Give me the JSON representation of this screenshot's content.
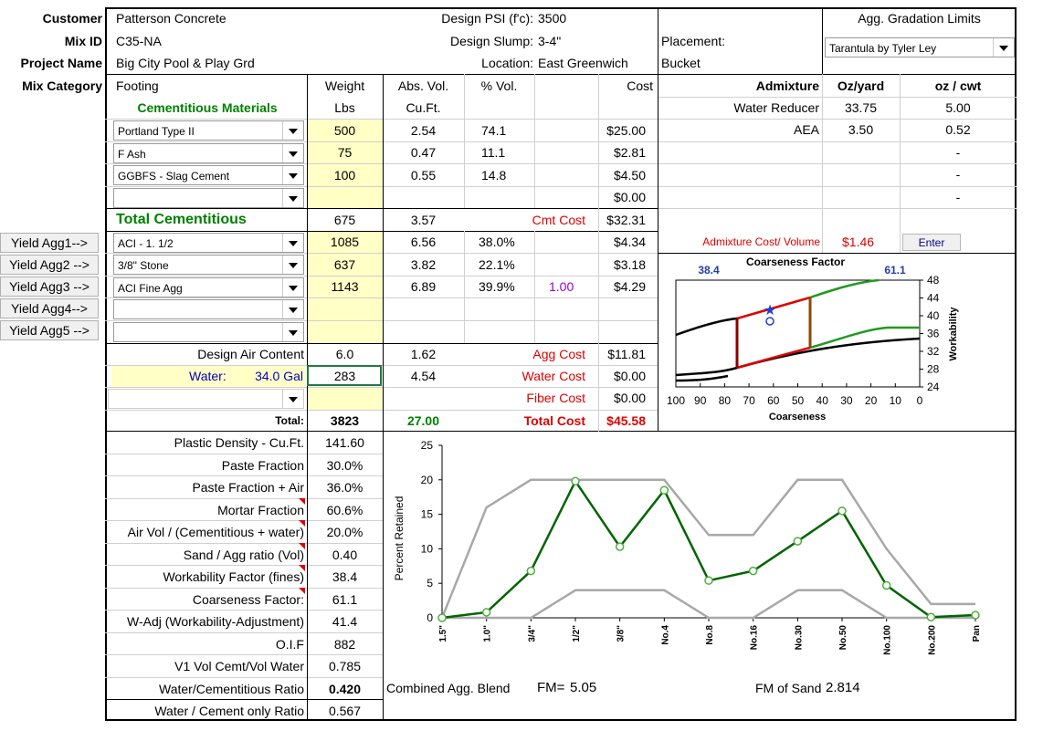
{
  "header": {
    "customer_label": "Customer",
    "customer": "Patterson Concrete",
    "mixid_label": "Mix ID",
    "mixid": "C35-NA",
    "project_label": "Project Name",
    "project": "Big City Pool & Play Grd",
    "category_label": "Mix Category",
    "category": "Footing",
    "psi_label": "Design PSI (f'c):",
    "psi": "3500",
    "slump_label": "Design Slump:",
    "slump": "3-4\"",
    "location_label": "Location:",
    "location": "East Greenwich",
    "placement_label": "Placement:",
    "placement": "Bucket",
    "agg_limits_label": "Agg. Gradation Limits",
    "agg_limits_value": "Tarantula by Tyler Ley"
  },
  "columns": {
    "weight": "Weight",
    "lbs": "Lbs",
    "absvol": "Abs. Vol.",
    "cuft": "Cu.Ft.",
    "pctvol": "% Vol.",
    "cost": "Cost"
  },
  "cementitious": {
    "heading": "Cementitious Materials",
    "rows": [
      {
        "name": "Portland Type II",
        "weight": "500",
        "vol": "2.54",
        "pct": "74.1",
        "cost": "$25.00"
      },
      {
        "name": "F Ash",
        "weight": "75",
        "vol": "0.47",
        "pct": "11.1",
        "cost": "$2.81"
      },
      {
        "name": "GGBFS - Slag Cement",
        "weight": "100",
        "vol": "0.55",
        "pct": "14.8",
        "cost": "$4.50"
      },
      {
        "name": "",
        "weight": "",
        "vol": "",
        "pct": "",
        "cost": "$0.00"
      }
    ],
    "total_label": "Total Cementitious",
    "total_weight": "675",
    "total_vol": "3.57",
    "cost_label": "Cmt Cost",
    "total_cost": "$32.31"
  },
  "aggregates": {
    "buttons": [
      "Yield Agg1-->",
      "Yield Agg2 -->",
      "Yield Agg3 -->",
      "Yield Agg4-->",
      "Yield Agg5 -->"
    ],
    "rows": [
      {
        "name": "ACI - 1. 1/2",
        "weight": "1085",
        "vol": "6.56",
        "pct": "38.0%",
        "extra": "",
        "cost": "$4.34"
      },
      {
        "name": "3/8\" Stone",
        "weight": "637",
        "vol": "3.82",
        "pct": "22.1%",
        "extra": "",
        "cost": "$3.18"
      },
      {
        "name": "ACI Fine Agg",
        "weight": "1143",
        "vol": "6.89",
        "pct": "39.9%",
        "extra": "1.00",
        "cost": "$4.29"
      },
      {
        "name": "",
        "weight": "",
        "vol": "",
        "pct": "",
        "extra": "",
        "cost": ""
      },
      {
        "name": "",
        "weight": "",
        "vol": "",
        "pct": "",
        "extra": "",
        "cost": ""
      }
    ]
  },
  "air": {
    "label": "Design Air Content",
    "value": "6.0",
    "vol": "1.62",
    "cost_label": "Agg Cost",
    "cost": "$11.81"
  },
  "water": {
    "label": "Water:",
    "gal": "34.0 Gal",
    "weight": "283",
    "vol": "4.54",
    "cost_label": "Water Cost",
    "cost": "$0.00"
  },
  "fiber": {
    "cost_label": "Fiber Cost",
    "cost": "$0.00"
  },
  "totals": {
    "label": "Total:",
    "weight": "3823",
    "vol": "27.00",
    "cost_label": "Total Cost",
    "cost": "$45.58"
  },
  "admixture": {
    "heading": "Admixture",
    "col1": "Oz/yard",
    "col2": "oz / cwt",
    "rows": [
      {
        "name": "Water Reducer",
        "oz": "33.75",
        "cwt": "5.00"
      },
      {
        "name": "AEA",
        "oz": "3.50",
        "cwt": "0.52"
      },
      {
        "name": "",
        "oz": "",
        "cwt": "-"
      },
      {
        "name": "",
        "oz": "",
        "cwt": "-"
      },
      {
        "name": "",
        "oz": "",
        "cwt": "-"
      }
    ],
    "cost_label": "Admixture Cost/ Volume",
    "cost": "$1.46",
    "enter": "Enter"
  },
  "properties": [
    {
      "label": "Plastic Density -   Cu.Ft.",
      "value": "141.60"
    },
    {
      "label": "Paste Fraction",
      "value": "30.0%"
    },
    {
      "label": "Paste Fraction + Air",
      "value": "36.0%"
    },
    {
      "label": "Mortar Fraction",
      "value": "60.6%"
    },
    {
      "label": "Air Vol / (Cementitious + water)",
      "value": "20.0%"
    },
    {
      "label": "Sand / Agg ratio (Vol)",
      "value": "0.40"
    },
    {
      "label": "Workability Factor (fines)",
      "value": "38.4"
    },
    {
      "label": "Coarseness Factor:",
      "value": "61.1"
    },
    {
      "label": "W-Adj (Workability-Adjustment)",
      "value": "41.4"
    },
    {
      "label": "O.I.F",
      "value": "882"
    },
    {
      "label": "V1   Vol Cemt/Vol Water",
      "value": "0.785"
    },
    {
      "label": "Water/Cementitious Ratio",
      "value": "0.420"
    },
    {
      "label": "Water / Cement only Ratio",
      "value": "0.567"
    }
  ],
  "footer": {
    "blend": "Combined Agg. Blend",
    "fm_label": "FM=",
    "fm": "5.05",
    "fm_sand_label": "FM of Sand",
    "fm_sand": "2.814"
  },
  "chart_data": [
    {
      "type": "line",
      "title": "Coarseness Factor",
      "xlabel": "Coarseness",
      "ylabel": "Workability",
      "xlim": [
        100,
        0
      ],
      "ylim": [
        24,
        48
      ],
      "xticks": [
        100,
        90,
        80,
        70,
        60,
        50,
        40,
        30,
        20,
        10,
        0
      ],
      "yticks": [
        24,
        28,
        32,
        36,
        40,
        44,
        48
      ],
      "annotations": {
        "left": "38.4",
        "right": "61.1"
      },
      "point": {
        "x": 61.1,
        "y": 38.4
      },
      "point_adjusted": {
        "x": 61.1,
        "y": 41.4
      },
      "colors": {
        "zone_mid": "#e00000",
        "zone_upper": "#008000",
        "boundary": "#000000"
      }
    },
    {
      "type": "line",
      "xlabel": "",
      "ylabel": "Percent Retained",
      "ylim": [
        0,
        25
      ],
      "yticks": [
        0,
        5,
        10,
        15,
        20,
        25
      ],
      "categories": [
        "1.5\"",
        "1.0\"",
        "3/4\"",
        "1/2\"",
        "3/8\"",
        "No.4",
        "No.8",
        "No.16",
        "No.30",
        "No.50",
        "No.100",
        "No.200",
        "Pan"
      ],
      "series": [
        {
          "values": [
            0,
            0.8,
            6.8,
            19.8,
            10.3,
            18.5,
            5.4,
            6.8,
            11.1,
            15.5,
            4.7,
            0.1,
            0.4
          ],
          "color": "#006400"
        },
        {
          "values": [
            0,
            16,
            20,
            20,
            20,
            20,
            12,
            12,
            20,
            20,
            10,
            2,
            2
          ],
          "color": "#a8a8a8"
        },
        {
          "values": [
            0,
            0,
            0,
            4,
            4,
            4,
            0,
            0,
            4,
            4,
            0,
            0,
            0
          ],
          "color": "#a8a8a8"
        }
      ]
    }
  ]
}
